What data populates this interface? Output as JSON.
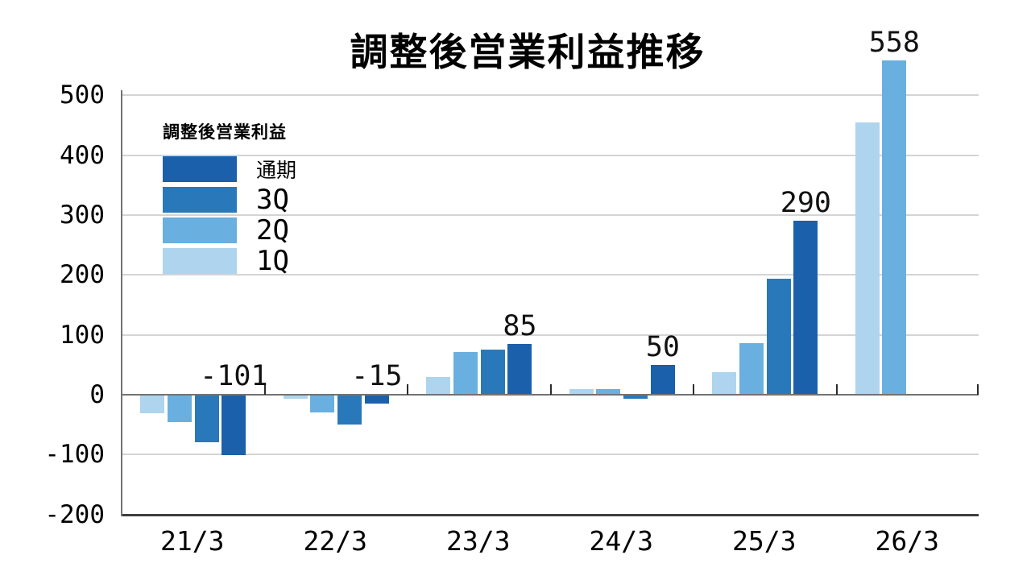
{
  "chart_data": {
    "type": "bar",
    "title": "調整後営業利益推移",
    "legend": {
      "title": "調整後営業利益",
      "position": "upper-left",
      "items": [
        {
          "label": "通期",
          "color": "#1b60aa"
        },
        {
          "label": "3Q",
          "color": "#2979ba"
        },
        {
          "label": "2Q",
          "color": "#69afdf"
        },
        {
          "label": "1Q",
          "color": "#aed4ee"
        }
      ]
    },
    "categories": [
      "21/3",
      "22/3",
      "23/3",
      "24/3",
      "25/3",
      "26/3"
    ],
    "series": [
      {
        "name": "1Q",
        "color": "#aed4ee",
        "values": [
          -31,
          -7,
          30,
          10,
          37,
          454
        ]
      },
      {
        "name": "2Q",
        "color": "#69afdf",
        "values": [
          -46,
          -30,
          71,
          9,
          86,
          558
        ]
      },
      {
        "name": "3Q",
        "color": "#2979ba",
        "values": [
          -79,
          -50,
          75,
          -7,
          194,
          null
        ]
      },
      {
        "name": "通期",
        "color": "#1b60aa",
        "values": [
          -101,
          -15,
          85,
          50,
          290,
          null
        ]
      }
    ],
    "value_labels": [
      {
        "category_index": 0,
        "series": "通期",
        "text": "-101"
      },
      {
        "category_index": 1,
        "series": "通期",
        "text": "-15"
      },
      {
        "category_index": 2,
        "series": "通期",
        "text": "85"
      },
      {
        "category_index": 3,
        "series": "通期",
        "text": "50"
      },
      {
        "category_index": 4,
        "series": "通期",
        "text": "290"
      },
      {
        "category_index": 5,
        "series": "2Q",
        "text": "558"
      }
    ],
    "y_axis": {
      "ticks": [
        500,
        400,
        300,
        200,
        100,
        0,
        -100,
        -200
      ],
      "min": -200,
      "max": 560
    },
    "grid": true
  }
}
